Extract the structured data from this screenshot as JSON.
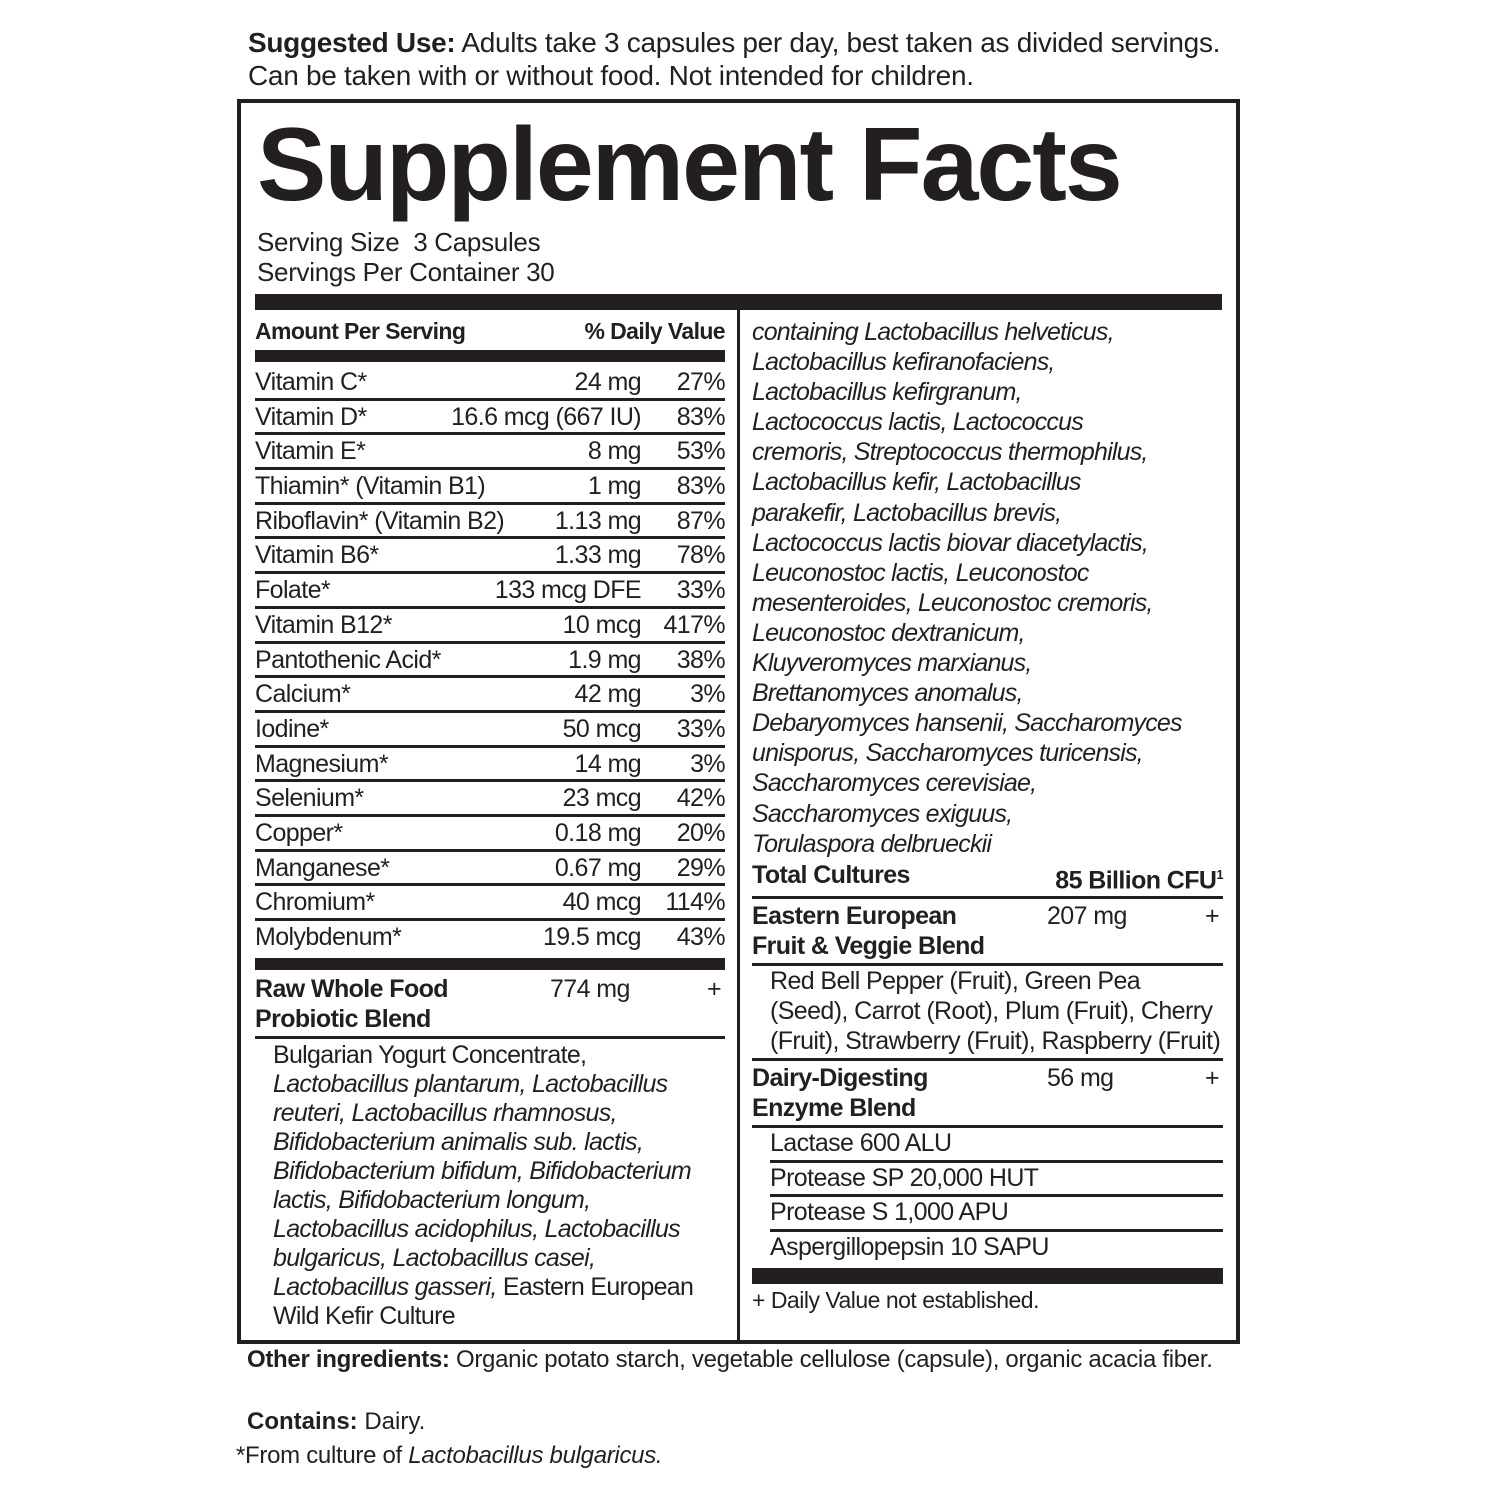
{
  "suggested_use": {
    "label": "Suggested Use:",
    "text": " Adults take 3 capsules per day, best taken as divided servings. Can be taken with or without food. Not intended for children."
  },
  "title": "Supplement Facts",
  "serving_size": "Serving Size  3 Capsules",
  "servings_per_container": "Servings Per Container 30",
  "header": {
    "amount": "Amount Per Serving",
    "dv": "% Daily Value"
  },
  "nutrients": [
    {
      "name": "Vitamin C*",
      "amount": "24 mg",
      "dv": "27%"
    },
    {
      "name": "Vitamin D*",
      "amount": "16.6 mcg (667 IU)",
      "dv": "83%"
    },
    {
      "name": "Vitamin E*",
      "amount": "8 mg",
      "dv": "53%"
    },
    {
      "name": "Thiamin* (Vitamin B1)",
      "amount": "1 mg",
      "dv": "83%"
    },
    {
      "name": "Riboflavin* (Vitamin B2)",
      "amount": "1.13 mg",
      "dv": "87%"
    },
    {
      "name": "Vitamin B6*",
      "amount": "1.33 mg",
      "dv": "78%"
    },
    {
      "name": "Folate*",
      "amount": "133 mcg DFE",
      "dv": "33%"
    },
    {
      "name": "Vitamin B12*",
      "amount": "10 mcg",
      "dv": "417%"
    },
    {
      "name": "Pantothenic Acid*",
      "amount": "1.9 mg",
      "dv": "38%"
    },
    {
      "name": "Calcium*",
      "amount": "42 mg",
      "dv": "3%"
    },
    {
      "name": "Iodine*",
      "amount": "50 mcg",
      "dv": "33%"
    },
    {
      "name": "Magnesium*",
      "amount": "14 mg",
      "dv": "3%"
    },
    {
      "name": "Selenium*",
      "amount": "23 mcg",
      "dv": "42%"
    },
    {
      "name": "Copper*",
      "amount": "0.18 mg",
      "dv": "20%"
    },
    {
      "name": "Manganese*",
      "amount": "0.67 mg",
      "dv": "29%"
    },
    {
      "name": "Chromium*",
      "amount": "40 mcg",
      "dv": "114%"
    },
    {
      "name": "Molybdenum*",
      "amount": "19.5 mcg",
      "dv": "43%"
    }
  ],
  "probiotic_blend": {
    "name_line1": "Raw Whole Food",
    "name_line2": "Probiotic Blend",
    "amount": "774 mg",
    "dv": "+",
    "lead": "Bulgarian Yogurt Concentrate, ",
    "italic": "Lactobacillus plantarum, Lactobacillus reuteri, Lactobacillus rhamnosus, Bifidobacterium animalis sub. lactis, Bifidobacterium bifidum, Bifidobacterium lactis, Bifidobacterium longum, Lactobacillus acidophilus, Lactobacillus bulgaricus, Lactobacillus casei, Lactobacillus gasseri,",
    "tail": " Eastern European Wild Kefir Culture",
    "continued_lines": [
      "containing Lactobacillus helveticus,",
      "Lactobacillus kefiranofaciens,",
      "Lactobacillus kefirgranum,",
      "Lactococcus lactis, Lactococcus",
      "cremoris, Streptococcus thermophilus,",
      "Lactobacillus kefir, Lactobacillus",
      "parakefir, Lactobacillus brevis,",
      "Lactococcus lactis biovar diacetylactis,",
      "Leuconostoc lactis, Leuconostoc",
      "mesenteroides, Leuconostoc cremoris,",
      "Leuconostoc dextranicum,",
      "Kluyveromyces  marxianus,",
      "Brettanomyces anomalus,",
      "Debaryomyces hansenii, Saccharomyces",
      "unisporus, Saccharomyces turicensis,",
      "Saccharomyces cerevisiae,",
      "Saccharomyces exiguus,",
      "Torulaspora delbrueckii"
    ]
  },
  "total_cultures": {
    "label": "Total Cultures",
    "value": "85 Billion CFU",
    "sup": "1"
  },
  "fruit_blend": {
    "name_line1": "Eastern European",
    "name_line2": "Fruit & Veggie Blend",
    "amount": "207 mg",
    "dv": "+",
    "text": "Red Bell Pepper (Fruit), Green Pea (Seed), Carrot (Root), Plum (Fruit), Cherry (Fruit), Strawberry (Fruit), Raspberry (Fruit)"
  },
  "enzyme_blend": {
    "name_line1": "Dairy-Digesting",
    "name_line2": "Enzyme Blend",
    "amount": "56 mg",
    "dv": "+",
    "items": [
      "Lactase 600 ALU",
      "Protease SP 20,000 HUT",
      "Protease S 1,000 APU",
      "Aspergillopepsin 10 SAPU"
    ]
  },
  "footnote": "+ Daily Value not established.",
  "other_ingredients": {
    "label": "Other ingredients:",
    "text": " Organic potato starch, vegetable cellulose (capsule), organic acacia fiber."
  },
  "contains": {
    "label": "Contains:",
    "text": " Dairy."
  },
  "from_culture": {
    "text": "*From culture of ",
    "italic": "Lactobacillus bulgaricus."
  }
}
